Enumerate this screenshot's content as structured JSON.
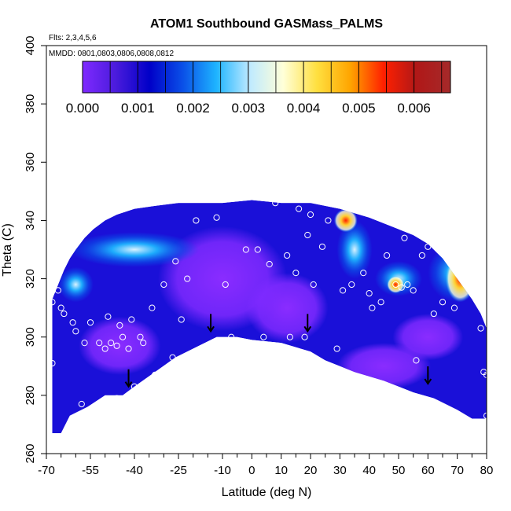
{
  "chart_data": {
    "type": "heatmap",
    "title": "ATOM1 Southbound GASMass_PALMS",
    "flights_note": "Flts: 2,3,4,5,6",
    "mmdd_note": "MMDD: 0801,0803,0806,0808,0812",
    "xlabel": "Latitude (deg N)",
    "ylabel": "Theta (C)",
    "xlim": [
      -70,
      80
    ],
    "ylim": [
      260,
      400
    ],
    "x_ticks": [
      -70,
      -55,
      -40,
      -25,
      -10,
      0,
      10,
      20,
      30,
      40,
      50,
      60,
      70,
      80
    ],
    "x_tick_labels": [
      "-70",
      "-55",
      "-40",
      "-25",
      "-10",
      "0",
      "10",
      "20",
      "30",
      "40",
      "50",
      "60",
      "70",
      "80"
    ],
    "x_minor_ticks": [
      -65,
      -60,
      -50,
      -45,
      -35,
      -30,
      -20,
      -15,
      -5,
      5,
      15,
      25,
      35,
      45,
      55,
      65,
      75
    ],
    "y_ticks": [
      260,
      280,
      300,
      320,
      340,
      360,
      380,
      400
    ],
    "y_tick_labels": [
      "260",
      "280",
      "300",
      "320",
      "340",
      "360",
      "380",
      "400"
    ],
    "colorbar": {
      "min": 0.0,
      "max": 0.00666,
      "ticks": [
        0.0,
        0.001,
        0.002,
        0.003,
        0.004,
        0.005,
        0.006
      ],
      "tick_labels": [
        "0.000",
        "0.001",
        "0.002",
        "0.003",
        "0.004",
        "0.005",
        "0.006"
      ],
      "colors": [
        "#7f2aff",
        "#4a1bdc",
        "#0000c8",
        "#0a50e8",
        "#1eb4ff",
        "#bfeaff",
        "#ffffd8",
        "#ffe040",
        "#ffa500",
        "#ff2000",
        "#b01818",
        "#a52a2a"
      ]
    },
    "coverage_top": [
      [
        -68,
        313
      ],
      [
        -66,
        318
      ],
      [
        -64,
        323
      ],
      [
        -62,
        327
      ],
      [
        -60,
        330
      ],
      [
        -57,
        334
      ],
      [
        -54,
        337
      ],
      [
        -50,
        340
      ],
      [
        -46,
        342
      ],
      [
        -40,
        344
      ],
      [
        -33,
        345
      ],
      [
        -25,
        346
      ],
      [
        -10,
        346
      ],
      [
        0,
        347
      ],
      [
        10,
        346
      ],
      [
        20,
        346
      ],
      [
        30,
        344
      ],
      [
        40,
        341
      ],
      [
        50,
        337
      ],
      [
        55,
        335
      ],
      [
        60,
        332
      ],
      [
        65,
        327
      ],
      [
        70,
        320
      ],
      [
        75,
        313
      ],
      [
        78,
        308
      ],
      [
        80,
        303
      ]
    ],
    "coverage_bottom": [
      [
        80,
        272
      ],
      [
        75,
        272
      ],
      [
        70,
        275
      ],
      [
        62,
        279
      ],
      [
        55,
        281
      ],
      [
        45,
        285
      ],
      [
        35,
        288
      ],
      [
        25,
        292
      ],
      [
        20,
        295
      ],
      [
        10,
        298
      ],
      [
        0,
        299
      ],
      [
        -5,
        300
      ],
      [
        -12,
        300
      ],
      [
        -20,
        296
      ],
      [
        -26,
        293
      ],
      [
        -33,
        288
      ],
      [
        -40,
        283
      ],
      [
        -44,
        280
      ],
      [
        -50,
        280
      ],
      [
        -56,
        276
      ],
      [
        -62,
        273
      ],
      [
        -65,
        267
      ],
      [
        -68,
        267
      ]
    ],
    "features": [
      {
        "kind": "core",
        "x": -45,
        "y": 297,
        "rx": 14,
        "ry": 10,
        "value": 0.0
      },
      {
        "kind": "core",
        "x": -10,
        "y": 320,
        "rx": 22,
        "ry": 18,
        "value": 0.0
      },
      {
        "kind": "core",
        "x": 12,
        "y": 310,
        "rx": 14,
        "ry": 12,
        "value": 0.0
      },
      {
        "kind": "core",
        "x": 45,
        "y": 290,
        "rx": 16,
        "ry": 8,
        "value": 0.0
      },
      {
        "kind": "core",
        "x": 60,
        "y": 300,
        "rx": 12,
        "ry": 8,
        "value": 0.0
      },
      {
        "kind": "band",
        "x": -40,
        "y": 330,
        "rx": 22,
        "ry": 6,
        "value": 0.0024
      },
      {
        "kind": "band",
        "x": -60,
        "y": 318,
        "rx": 6,
        "ry": 6,
        "value": 0.0022
      },
      {
        "kind": "band",
        "x": 35,
        "y": 330,
        "rx": 6,
        "ry": 10,
        "value": 0.0024
      },
      {
        "kind": "band",
        "x": 50,
        "y": 320,
        "rx": 8,
        "ry": 6,
        "value": 0.0025
      },
      {
        "kind": "band",
        "x": 70,
        "y": 322,
        "rx": 10,
        "ry": 10,
        "value": 0.0028
      },
      {
        "kind": "hot",
        "x": 32,
        "y": 340,
        "rx": 4,
        "ry": 4,
        "value": 0.0055
      },
      {
        "kind": "hot",
        "x": 49,
        "y": 318,
        "rx": 3,
        "ry": 3,
        "value": 0.0042
      },
      {
        "kind": "hot",
        "x": 71,
        "y": 320,
        "rx": 5,
        "ry": 8,
        "value": 0.0042
      }
    ],
    "observations": [
      [
        -68,
        312
      ],
      [
        -66,
        316
      ],
      [
        -65,
        310
      ],
      [
        -64,
        308
      ],
      [
        -61,
        305
      ],
      [
        -60,
        302
      ],
      [
        -57,
        298
      ],
      [
        -55,
        305
      ],
      [
        -52,
        298
      ],
      [
        -50,
        296
      ],
      [
        -49,
        307
      ],
      [
        -48,
        298
      ],
      [
        -46,
        297
      ],
      [
        -45,
        304
      ],
      [
        -44,
        300
      ],
      [
        -42,
        296
      ],
      [
        -41,
        306
      ],
      [
        -38,
        300
      ],
      [
        -37,
        298
      ],
      [
        -34,
        310
      ],
      [
        -33,
        287
      ],
      [
        -30,
        318
      ],
      [
        -26,
        326
      ],
      [
        -24,
        306
      ],
      [
        -22,
        320
      ],
      [
        -19,
        340
      ],
      [
        -12,
        341
      ],
      [
        -9,
        318
      ],
      [
        -7,
        300
      ],
      [
        -2,
        330
      ],
      [
        0,
        349
      ],
      [
        2,
        330
      ],
      [
        4,
        300
      ],
      [
        6,
        325
      ],
      [
        8,
        346
      ],
      [
        12,
        328
      ],
      [
        13,
        300
      ],
      [
        15,
        322
      ],
      [
        16,
        344
      ],
      [
        18,
        300
      ],
      [
        19,
        335
      ],
      [
        20,
        342
      ],
      [
        21,
        318
      ],
      [
        24,
        331
      ],
      [
        26,
        340
      ],
      [
        29,
        296
      ],
      [
        31,
        316
      ],
      [
        34,
        318
      ],
      [
        38,
        322
      ],
      [
        40,
        315
      ],
      [
        41,
        310
      ],
      [
        44,
        312
      ],
      [
        46,
        328
      ],
      [
        49,
        318
      ],
      [
        51,
        317
      ],
      [
        52,
        334
      ],
      [
        53,
        318
      ],
      [
        55,
        316
      ],
      [
        56,
        292
      ],
      [
        58,
        328
      ],
      [
        60,
        331
      ],
      [
        62,
        308
      ],
      [
        65,
        312
      ],
      [
        66,
        338
      ],
      [
        69,
        310
      ],
      [
        78,
        303
      ],
      [
        79,
        288
      ],
      [
        80,
        287
      ],
      [
        80,
        273
      ],
      [
        -68,
        291
      ],
      [
        -44,
        278
      ],
      [
        -46,
        279
      ],
      [
        -58,
        277
      ],
      [
        -40,
        283
      ],
      [
        -27,
        293
      ]
    ],
    "arrows": [
      [
        -42,
        283
      ],
      [
        -14,
        302
      ],
      [
        19,
        302
      ],
      [
        60,
        284
      ]
    ],
    "grid": false,
    "legend": "colorbar top-inset"
  }
}
